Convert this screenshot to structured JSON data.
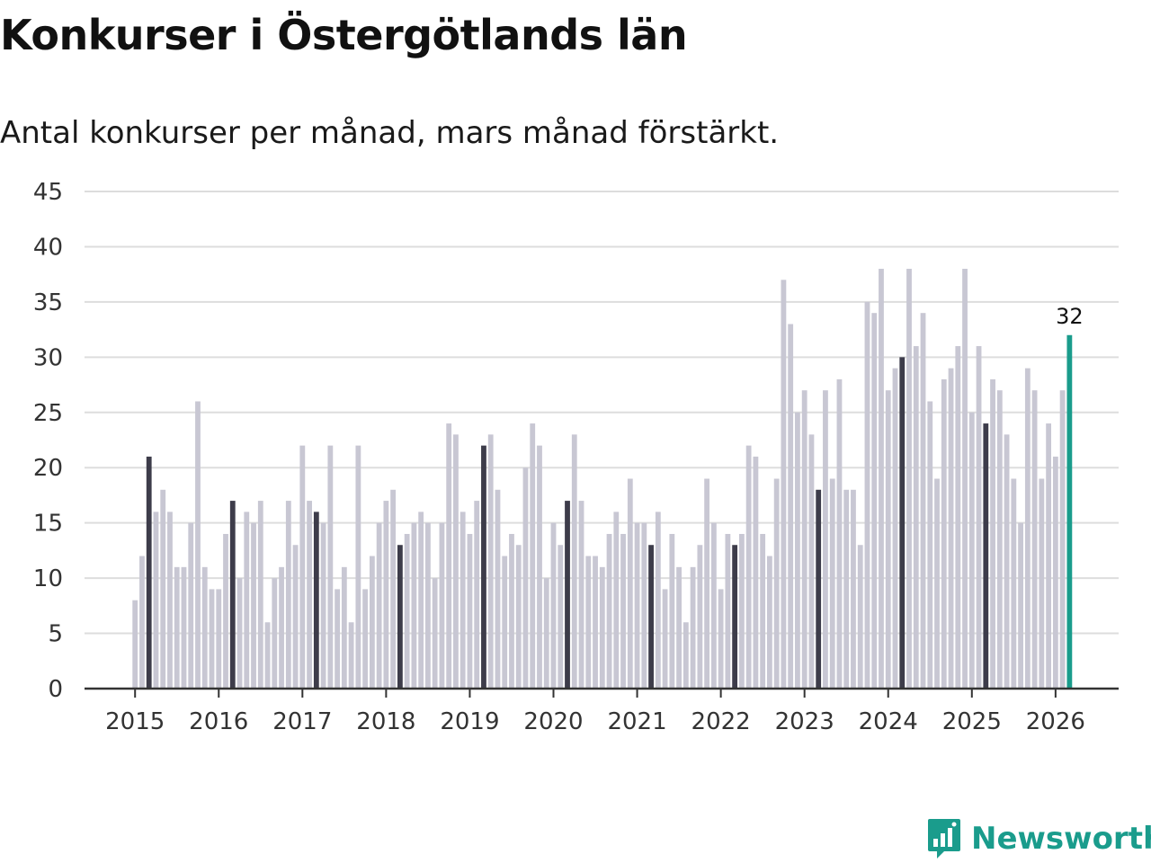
{
  "title": "Konkurser i Östergötlands län",
  "subtitle": "Antal konkurser per månad, mars månad förstärkt.",
  "brand": {
    "name": "Newsworthy",
    "color": "#1a9c8c",
    "icon": "bar-chart-bubble-icon"
  },
  "colors": {
    "regular": "#c8c7d3",
    "march": "#3d3c4a",
    "latest": "#1a9c8c",
    "grid": "#dddddd",
    "axis": "#333333"
  },
  "chart_data": {
    "type": "bar",
    "title": "Konkurser i Östergötlands län",
    "subtitle": "Antal konkurser per månad, mars månad förstärkt.",
    "xlabel": "",
    "ylabel": "",
    "ylim": [
      0,
      45
    ],
    "yticks": [
      0,
      5,
      10,
      15,
      20,
      25,
      30,
      35,
      40,
      45
    ],
    "xticks": [
      "2015",
      "2016",
      "2017",
      "2018",
      "2019",
      "2020",
      "2021",
      "2022",
      "2023",
      "2024",
      "2025",
      "2026"
    ],
    "grid": true,
    "start": "2015-01",
    "highlight": "March of each year (dark); latest month (teal)",
    "latest_label": "32",
    "values": [
      8,
      12,
      21,
      16,
      18,
      16,
      11,
      11,
      15,
      26,
      11,
      9,
      9,
      14,
      17,
      10,
      16,
      15,
      17,
      6,
      10,
      11,
      17,
      13,
      22,
      17,
      16,
      15,
      22,
      9,
      11,
      6,
      22,
      9,
      12,
      15,
      17,
      18,
      13,
      14,
      15,
      16,
      15,
      10,
      15,
      24,
      23,
      16,
      14,
      17,
      22,
      23,
      18,
      12,
      14,
      13,
      20,
      24,
      22,
      10,
      15,
      13,
      17,
      23,
      17,
      12,
      12,
      11,
      14,
      16,
      14,
      19,
      15,
      15,
      13,
      16,
      9,
      14,
      11,
      6,
      11,
      13,
      19,
      15,
      9,
      14,
      13,
      14,
      22,
      21,
      14,
      12,
      19,
      37,
      33,
      25,
      27,
      23,
      18,
      27,
      19,
      28,
      18,
      18,
      13,
      35,
      34,
      38,
      27,
      29,
      30,
      38,
      31,
      34,
      26,
      19,
      28,
      29,
      31,
      38,
      25,
      31,
      24,
      28,
      27,
      23,
      19,
      15,
      29,
      27,
      19,
      24,
      21,
      27,
      32
    ]
  }
}
